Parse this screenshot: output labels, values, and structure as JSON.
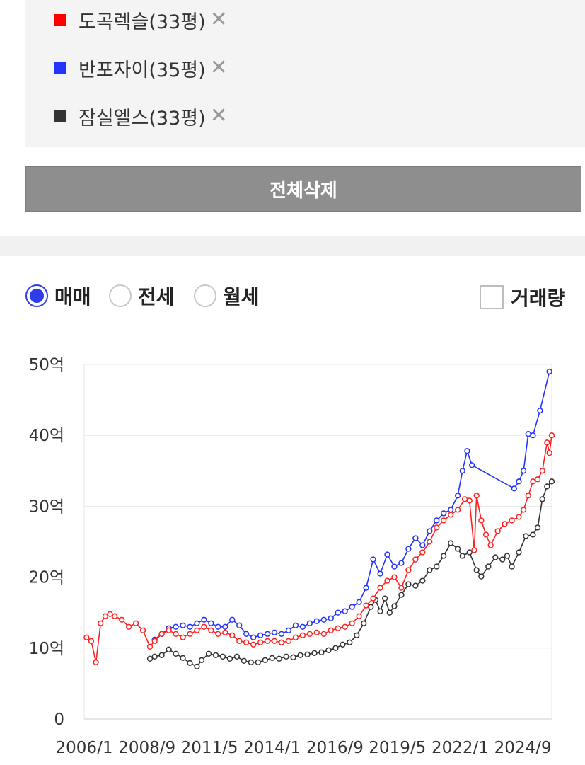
{
  "compare_list": {
    "items": [
      {
        "label": "도곡렉슬(33평)",
        "color": "#ff0000",
        "remove": "✕"
      },
      {
        "label": "반포자이(35평)",
        "color": "#2233ff",
        "remove": "✕"
      },
      {
        "label": "잠실엘스(33평)",
        "color": "#333333",
        "remove": "✕"
      }
    ],
    "clear_all_label": "전체삭제"
  },
  "trade_type": {
    "options": [
      {
        "label": "매매",
        "selected": true
      },
      {
        "label": "전세",
        "selected": false
      },
      {
        "label": "월세",
        "selected": false
      }
    ],
    "volume_label": "거래량",
    "volume_checked": false
  },
  "chart_data": {
    "type": "line",
    "y_unit": "억",
    "ylim": [
      0,
      50
    ],
    "yticks": [
      0,
      10,
      20,
      30,
      40,
      50
    ],
    "ytick_labels": [
      "0",
      "10억",
      "20억",
      "30억",
      "40억",
      "50억"
    ],
    "x_range": [
      2006.0,
      2025.9
    ],
    "xtick_labels": [
      "2006/1",
      "2008/9",
      "2011/5",
      "2014/1",
      "2016/9",
      "2019/5",
      "2022/1",
      "2024/9"
    ],
    "xtick_values": [
      2006.0,
      2008.67,
      2011.33,
      2014.0,
      2016.67,
      2019.33,
      2022.0,
      2024.67
    ],
    "grid": true,
    "series": [
      {
        "name": "잠실엘스(33평)",
        "color": "#333333",
        "points": [
          [
            2008.8,
            8.5
          ],
          [
            2009.0,
            8.8
          ],
          [
            2009.3,
            9.0
          ],
          [
            2009.6,
            9.8
          ],
          [
            2009.9,
            9.2
          ],
          [
            2010.2,
            8.6
          ],
          [
            2010.5,
            7.9
          ],
          [
            2010.8,
            7.4
          ],
          [
            2011.0,
            8.3
          ],
          [
            2011.3,
            9.2
          ],
          [
            2011.6,
            9.0
          ],
          [
            2011.9,
            8.8
          ],
          [
            2012.2,
            8.5
          ],
          [
            2012.5,
            8.8
          ],
          [
            2012.8,
            8.2
          ],
          [
            2013.1,
            8.0
          ],
          [
            2013.4,
            8.0
          ],
          [
            2013.7,
            8.3
          ],
          [
            2014.0,
            8.6
          ],
          [
            2014.3,
            8.5
          ],
          [
            2014.6,
            8.8
          ],
          [
            2014.9,
            8.7
          ],
          [
            2015.2,
            9.0
          ],
          [
            2015.5,
            9.1
          ],
          [
            2015.8,
            9.3
          ],
          [
            2016.1,
            9.4
          ],
          [
            2016.4,
            9.7
          ],
          [
            2016.7,
            10.0
          ],
          [
            2017.0,
            10.5
          ],
          [
            2017.3,
            10.8
          ],
          [
            2017.6,
            11.8
          ],
          [
            2017.9,
            13.5
          ],
          [
            2018.2,
            15.8
          ],
          [
            2018.4,
            16.8
          ],
          [
            2018.6,
            15.2
          ],
          [
            2018.8,
            17.0
          ],
          [
            2019.0,
            15.0
          ],
          [
            2019.2,
            15.9
          ],
          [
            2019.5,
            17.5
          ],
          [
            2019.8,
            19.0
          ],
          [
            2020.1,
            18.8
          ],
          [
            2020.4,
            19.5
          ],
          [
            2020.7,
            21.0
          ],
          [
            2021.0,
            21.5
          ],
          [
            2021.3,
            23.0
          ],
          [
            2021.6,
            24.8
          ],
          [
            2021.9,
            24.0
          ],
          [
            2022.1,
            23.0
          ],
          [
            2022.4,
            23.5
          ],
          [
            2022.7,
            21.0
          ],
          [
            2022.9,
            20.1
          ],
          [
            2023.2,
            21.5
          ],
          [
            2023.5,
            22.8
          ],
          [
            2023.8,
            22.5
          ],
          [
            2024.0,
            23.0
          ],
          [
            2024.2,
            21.5
          ],
          [
            2024.5,
            23.5
          ],
          [
            2024.8,
            25.8
          ],
          [
            2025.1,
            26.0
          ],
          [
            2025.3,
            27.0
          ],
          [
            2025.5,
            31.0
          ],
          [
            2025.7,
            32.8
          ],
          [
            2025.9,
            33.5
          ]
        ]
      },
      {
        "name": "반포자이(35평)",
        "color": "#2233ff",
        "points": [
          [
            2009.0,
            11.2
          ],
          [
            2009.3,
            12.0
          ],
          [
            2009.6,
            12.8
          ],
          [
            2009.9,
            13.0
          ],
          [
            2010.2,
            13.2
          ],
          [
            2010.5,
            13.0
          ],
          [
            2010.8,
            13.5
          ],
          [
            2011.1,
            14.0
          ],
          [
            2011.4,
            13.5
          ],
          [
            2011.7,
            13.0
          ],
          [
            2012.0,
            13.0
          ],
          [
            2012.3,
            14.0
          ],
          [
            2012.6,
            13.2
          ],
          [
            2012.9,
            12.0
          ],
          [
            2013.2,
            11.5
          ],
          [
            2013.5,
            11.8
          ],
          [
            2013.8,
            12.0
          ],
          [
            2014.1,
            12.2
          ],
          [
            2014.4,
            12.0
          ],
          [
            2014.7,
            12.5
          ],
          [
            2015.0,
            13.2
          ],
          [
            2015.3,
            13.0
          ],
          [
            2015.6,
            13.5
          ],
          [
            2015.9,
            13.8
          ],
          [
            2016.2,
            14.0
          ],
          [
            2016.5,
            14.2
          ],
          [
            2016.8,
            15.0
          ],
          [
            2017.1,
            15.2
          ],
          [
            2017.4,
            15.8
          ],
          [
            2017.7,
            16.5
          ],
          [
            2018.0,
            18.5
          ],
          [
            2018.3,
            22.5
          ],
          [
            2018.6,
            20.5
          ],
          [
            2018.9,
            23.2
          ],
          [
            2019.2,
            21.5
          ],
          [
            2019.5,
            22.0
          ],
          [
            2019.8,
            24.0
          ],
          [
            2020.1,
            25.5
          ],
          [
            2020.4,
            24.5
          ],
          [
            2020.7,
            26.5
          ],
          [
            2021.0,
            28.0
          ],
          [
            2021.3,
            29.0
          ],
          [
            2021.6,
            29.5
          ],
          [
            2021.9,
            31.5
          ],
          [
            2022.1,
            35.0
          ],
          [
            2022.3,
            37.8
          ],
          [
            2022.5,
            35.8
          ],
          [
            2024.3,
            32.5
          ],
          [
            2024.5,
            33.5
          ],
          [
            2024.7,
            35.0
          ],
          [
            2024.9,
            40.2
          ],
          [
            2025.1,
            40.0
          ],
          [
            2025.4,
            43.5
          ],
          [
            2025.8,
            49.0
          ]
        ]
      },
      {
        "name": "도곡렉슬(33평)",
        "color": "#ff2222",
        "points": [
          [
            2006.1,
            11.5
          ],
          [
            2006.3,
            11.0
          ],
          [
            2006.5,
            8.0
          ],
          [
            2006.7,
            13.5
          ],
          [
            2006.9,
            14.5
          ],
          [
            2007.1,
            14.8
          ],
          [
            2007.3,
            14.5
          ],
          [
            2007.6,
            14.0
          ],
          [
            2007.9,
            13.0
          ],
          [
            2008.2,
            13.5
          ],
          [
            2008.5,
            12.5
          ],
          [
            2008.8,
            10.2
          ],
          [
            2009.0,
            11.0
          ],
          [
            2009.3,
            12.0
          ],
          [
            2009.6,
            12.5
          ],
          [
            2009.9,
            12.0
          ],
          [
            2010.2,
            11.5
          ],
          [
            2010.5,
            12.0
          ],
          [
            2010.8,
            12.5
          ],
          [
            2011.1,
            13.0
          ],
          [
            2011.4,
            12.5
          ],
          [
            2011.7,
            12.0
          ],
          [
            2012.0,
            12.2
          ],
          [
            2012.3,
            11.8
          ],
          [
            2012.6,
            11.0
          ],
          [
            2012.9,
            10.8
          ],
          [
            2013.2,
            10.5
          ],
          [
            2013.5,
            10.8
          ],
          [
            2013.8,
            11.0
          ],
          [
            2014.1,
            11.0
          ],
          [
            2014.4,
            10.8
          ],
          [
            2014.7,
            11.0
          ],
          [
            2015.0,
            11.5
          ],
          [
            2015.3,
            11.8
          ],
          [
            2015.6,
            12.0
          ],
          [
            2015.9,
            12.2
          ],
          [
            2016.2,
            12.0
          ],
          [
            2016.5,
            12.5
          ],
          [
            2016.8,
            12.8
          ],
          [
            2017.1,
            13.0
          ],
          [
            2017.4,
            13.5
          ],
          [
            2017.7,
            14.5
          ],
          [
            2018.0,
            16.0
          ],
          [
            2018.3,
            17.0
          ],
          [
            2018.6,
            18.5
          ],
          [
            2018.9,
            19.5
          ],
          [
            2019.2,
            20.0
          ],
          [
            2019.5,
            18.5
          ],
          [
            2019.8,
            21.0
          ],
          [
            2020.1,
            22.5
          ],
          [
            2020.4,
            23.5
          ],
          [
            2020.7,
            25.0
          ],
          [
            2021.0,
            27.0
          ],
          [
            2021.3,
            28.0
          ],
          [
            2021.6,
            28.8
          ],
          [
            2021.9,
            29.5
          ],
          [
            2022.2,
            31.0
          ],
          [
            2022.4,
            30.8
          ],
          [
            2022.6,
            23.8
          ],
          [
            2022.7,
            31.5
          ],
          [
            2022.9,
            28.0
          ],
          [
            2023.1,
            26.0
          ],
          [
            2023.3,
            24.5
          ],
          [
            2023.6,
            26.5
          ],
          [
            2023.9,
            27.5
          ],
          [
            2024.2,
            28.0
          ],
          [
            2024.5,
            28.5
          ],
          [
            2024.7,
            29.5
          ],
          [
            2024.9,
            31.5
          ],
          [
            2025.1,
            33.5
          ],
          [
            2025.3,
            33.8
          ],
          [
            2025.5,
            35.0
          ],
          [
            2025.7,
            39.0
          ],
          [
            2025.8,
            37.5
          ],
          [
            2025.9,
            40.0
          ]
        ]
      }
    ]
  }
}
